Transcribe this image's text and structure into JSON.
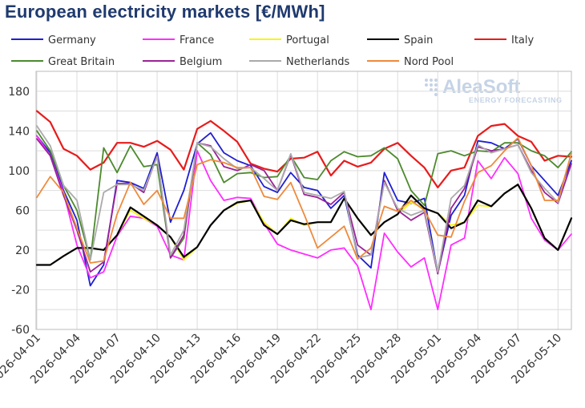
{
  "chart_data": {
    "type": "line",
    "title": "European electricity markets [€/MWh]",
    "ylim": [
      -60,
      200
    ],
    "yticks": [
      -60,
      -20,
      20,
      60,
      100,
      140,
      180
    ],
    "grid": true,
    "legend_position": "top",
    "x": [
      "2026-04-01",
      "2026-04-02",
      "2026-04-03",
      "2026-04-04",
      "2026-04-05",
      "2026-04-06",
      "2026-04-07",
      "2026-04-08",
      "2026-04-09",
      "2026-04-10",
      "2026-04-11",
      "2026-04-12",
      "2026-04-13",
      "2026-04-14",
      "2026-04-15",
      "2026-04-16",
      "2026-04-17",
      "2026-04-18",
      "2026-04-19",
      "2026-04-20",
      "2026-04-21",
      "2026-04-22",
      "2026-04-23",
      "2026-04-24",
      "2026-04-25",
      "2026-04-26",
      "2026-04-27",
      "2026-04-28",
      "2026-04-29",
      "2026-04-30",
      "2026-05-01",
      "2026-05-02",
      "2026-05-03",
      "2026-05-04",
      "2026-05-05",
      "2026-05-06",
      "2026-05-07",
      "2026-05-08",
      "2026-05-09",
      "2026-05-10",
      "2026-05-11"
    ],
    "xtick_labels": [
      "2026-04-01",
      "2026-04-04",
      "2026-04-07",
      "2026-04-10",
      "2026-04-13",
      "2026-04-16",
      "2026-04-19",
      "2026-04-22",
      "2026-04-25",
      "2026-04-28",
      "2026-05-01",
      "2026-05-04",
      "2026-05-07",
      "2026-05-10"
    ],
    "series": [
      {
        "name": "Germany",
        "color": "#1f1fd2",
        "values": [
          135,
          118,
          80,
          50,
          -16,
          5,
          90,
          88,
          82,
          118,
          48,
          80,
          127,
          138,
          118,
          110,
          105,
          84,
          78,
          98,
          83,
          80,
          62,
          75,
          15,
          2,
          98,
          70,
          67,
          72,
          -3,
          55,
          75,
          130,
          128,
          122,
          132,
          105,
          90,
          75,
          110
        ]
      },
      {
        "name": "France",
        "color": "#ff2dff",
        "values": [
          135,
          115,
          78,
          25,
          -8,
          -2,
          34,
          54,
          52,
          44,
          15,
          10,
          120,
          90,
          70,
          73,
          72,
          47,
          26,
          20,
          16,
          12,
          20,
          22,
          4,
          -40,
          37,
          18,
          3,
          12,
          -40,
          25,
          32,
          110,
          92,
          113,
          97,
          52,
          30,
          20,
          36
        ]
      },
      {
        "name": "Portugal",
        "color": "#f5f51a",
        "values": [
          5,
          5,
          14,
          22,
          22,
          20,
          35,
          60,
          52,
          45,
          33,
          10,
          23,
          45,
          60,
          67,
          70,
          48,
          36,
          52,
          45,
          48,
          48,
          72,
          52,
          35,
          48,
          56,
          68,
          62,
          57,
          45,
          48,
          65,
          64,
          77,
          86,
          62,
          32,
          20,
          52
        ]
      },
      {
        "name": "Spain",
        "color": "#000000",
        "values": [
          5,
          5,
          14,
          22,
          22,
          20,
          35,
          63,
          54,
          45,
          33,
          13,
          23,
          45,
          60,
          68,
          70,
          45,
          36,
          50,
          46,
          48,
          48,
          72,
          52,
          35,
          48,
          56,
          75,
          62,
          57,
          42,
          48,
          70,
          64,
          77,
          86,
          62,
          32,
          20,
          52
        ]
      },
      {
        "name": "Italy",
        "color": "#e81b1b",
        "values": [
          160,
          149,
          122,
          115,
          101,
          108,
          128,
          128,
          124,
          130,
          121,
          101,
          142,
          150,
          140,
          129,
          107,
          102,
          99,
          112,
          113,
          119,
          95,
          110,
          104,
          108,
          122,
          128,
          115,
          103,
          83,
          100,
          103,
          135,
          145,
          147,
          135,
          129,
          110,
          115,
          114
        ]
      },
      {
        "name": "Great Britain",
        "color": "#4c8a2d",
        "values": [
          140,
          120,
          85,
          60,
          10,
          123,
          98,
          125,
          104,
          106,
          12,
          32,
          128,
          116,
          88,
          97,
          98,
          93,
          94,
          115,
          93,
          91,
          110,
          119,
          114,
          115,
          123,
          112,
          80,
          65,
          117,
          120,
          115,
          120,
          119,
          128,
          128,
          120,
          115,
          103,
          119
        ]
      },
      {
        "name": "Belgium",
        "color": "#9b2297",
        "values": [
          132,
          115,
          75,
          40,
          -2,
          8,
          87,
          87,
          78,
          115,
          12,
          35,
          128,
          125,
          104,
          100,
          106,
          100,
          80,
          116,
          76,
          73,
          66,
          78,
          25,
          15,
          90,
          60,
          50,
          58,
          -4,
          62,
          82,
          124,
          120,
          122,
          126,
          100,
          78,
          67,
          107
        ]
      },
      {
        "name": "Netherlands",
        "color": "#aaaaaa",
        "values": [
          145,
          125,
          85,
          70,
          10,
          78,
          86,
          86,
          80,
          114,
          15,
          40,
          128,
          124,
          112,
          102,
          103,
          92,
          80,
          117,
          78,
          75,
          72,
          79,
          12,
          15,
          88,
          62,
          55,
          60,
          -2,
          72,
          85,
          126,
          118,
          122,
          126,
          98,
          82,
          68,
          118
        ]
      },
      {
        "name": "Nord Pool",
        "color": "#ee8a3b",
        "values": [
          73,
          94,
          78,
          42,
          7,
          9,
          56,
          88,
          66,
          80,
          52,
          52,
          106,
          111,
          108,
          103,
          103,
          74,
          71,
          88,
          56,
          22,
          33,
          44,
          11,
          22,
          64,
          59,
          70,
          60,
          35,
          33,
          69,
          98,
          105,
          120,
          133,
          105,
          70,
          70,
          117
        ]
      }
    ]
  }
}
